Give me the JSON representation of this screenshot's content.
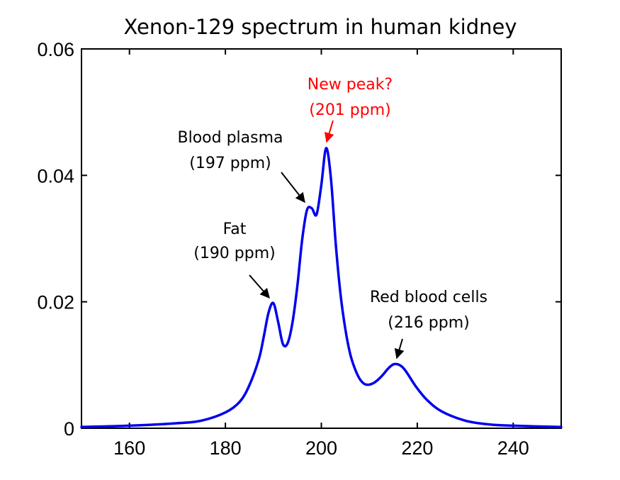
{
  "chart_data": {
    "type": "line",
    "title": "Xenon-129 spectrum in human kidney",
    "xlabel": "",
    "ylabel": "",
    "xlim": [
      150,
      250
    ],
    "ylim": [
      0,
      0.06
    ],
    "xticks": [
      160,
      180,
      200,
      220,
      240
    ],
    "yticks": [
      0,
      0.02,
      0.04,
      0.06
    ],
    "ytick_labels": [
      "0",
      "0.02",
      "0.04",
      "0.06"
    ],
    "grid": false,
    "series": [
      {
        "name": "Xenon-129 spectrum",
        "color": "#0000ee",
        "x": [
          150,
          160,
          170,
          175,
          180,
          183,
          185,
          187,
          188,
          189,
          190,
          191,
          192,
          193,
          194,
          195,
          196,
          197,
          198,
          199,
          200,
          201,
          202,
          203,
          204,
          205,
          206,
          207,
          208,
          209,
          210,
          211,
          212,
          213,
          214,
          215,
          216,
          217,
          218,
          219,
          220,
          222,
          225,
          230,
          235,
          240,
          250
        ],
        "y": [
          0.0002,
          0.0004,
          0.0008,
          0.0012,
          0.0025,
          0.0042,
          0.0068,
          0.011,
          0.0145,
          0.0183,
          0.0198,
          0.0168,
          0.0133,
          0.0135,
          0.0168,
          0.0225,
          0.0298,
          0.0345,
          0.0348,
          0.0338,
          0.0385,
          0.0443,
          0.0395,
          0.0292,
          0.0212,
          0.0157,
          0.0118,
          0.0094,
          0.0078,
          0.007,
          0.0069,
          0.0072,
          0.0078,
          0.0086,
          0.0095,
          0.0101,
          0.0101,
          0.0096,
          0.0086,
          0.0074,
          0.0063,
          0.0045,
          0.0027,
          0.0012,
          0.0006,
          0.0004,
          0.0002
        ]
      }
    ],
    "annotations": [
      {
        "lines": [
          "Fat",
          "(190 ppm)"
        ],
        "color": "#000000",
        "points_to": [
          190,
          0.0198
        ]
      },
      {
        "lines": [
          "Blood plasma",
          "(197 ppm)"
        ],
        "color": "#000000",
        "points_to": [
          197,
          0.0345
        ]
      },
      {
        "lines": [
          "New peak?",
          "(201 ppm)"
        ],
        "color": "#ff0000",
        "points_to": [
          201,
          0.0443
        ]
      },
      {
        "lines": [
          "Red blood cells",
          "(216 ppm)"
        ],
        "color": "#000000",
        "points_to": [
          216,
          0.0101
        ]
      }
    ]
  }
}
